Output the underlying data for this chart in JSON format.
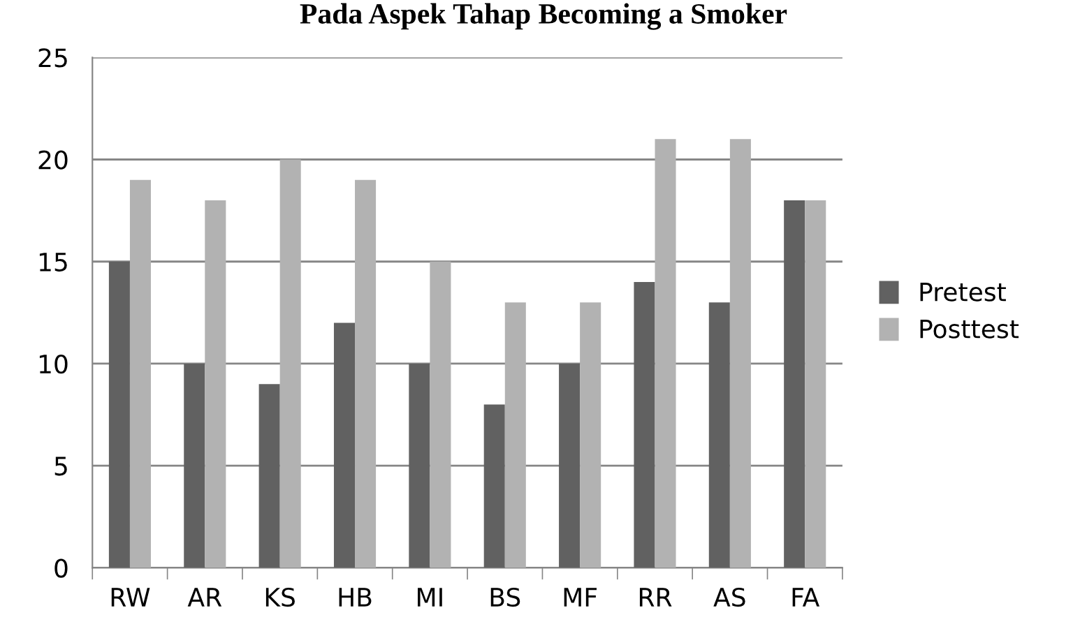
{
  "chart_data": {
    "type": "bar",
    "title": "Pada Aspek Tahap Becoming a Smoker",
    "categories": [
      "RW",
      "AR",
      "KS",
      "HB",
      "MI",
      "BS",
      "MF",
      "RR",
      "AS",
      "FA"
    ],
    "series": [
      {
        "name": "Pretest",
        "color": "#616161",
        "values": [
          15,
          10,
          9,
          12,
          10,
          8,
          10,
          14,
          13,
          18
        ]
      },
      {
        "name": "Posttest",
        "color": "#b2b2b2",
        "values": [
          19,
          18,
          20,
          19,
          15,
          13,
          13,
          21,
          21,
          18
        ]
      }
    ],
    "ylim": [
      0,
      25
    ],
    "yticks": [
      0,
      5,
      10,
      15,
      20,
      25
    ],
    "grid": "y",
    "legend": "right"
  }
}
